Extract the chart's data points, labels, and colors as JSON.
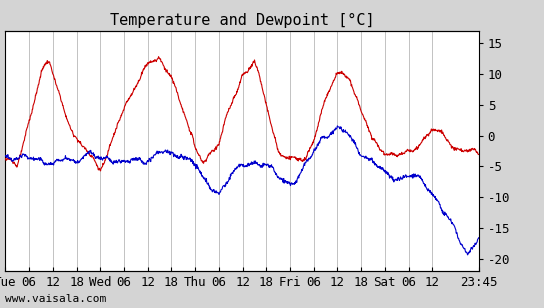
{
  "title": "Temperature and Dewpoint [°C]",
  "ylabel_right_ticks": [
    15,
    10,
    5,
    0,
    -5,
    -10,
    -15,
    -20
  ],
  "ylim": [
    -22,
    17
  ],
  "background_color": "#d4d4d4",
  "plot_bg_color": "#ffffff",
  "grid_color": "#aaaaaa",
  "temp_color": "#cc0000",
  "dew_color": "#0000cc",
  "footer": "www.vaisala.com",
  "title_fontsize": 11,
  "tick_fontsize": 9,
  "footer_fontsize": 8,
  "xtick_labels": [
    "Tue",
    "06",
    "12",
    "18",
    "Wed",
    "06",
    "12",
    "18",
    "Thu",
    "06",
    "12",
    "18",
    "Fri",
    "06",
    "12",
    "18",
    "Sat",
    "06",
    "12",
    "23:45"
  ],
  "xtick_positions": [
    0,
    6,
    12,
    18,
    24,
    30,
    36,
    42,
    48,
    54,
    60,
    66,
    72,
    78,
    84,
    90,
    96,
    102,
    108,
    119.75
  ],
  "total_hours": 119.75,
  "n_points": 1200
}
